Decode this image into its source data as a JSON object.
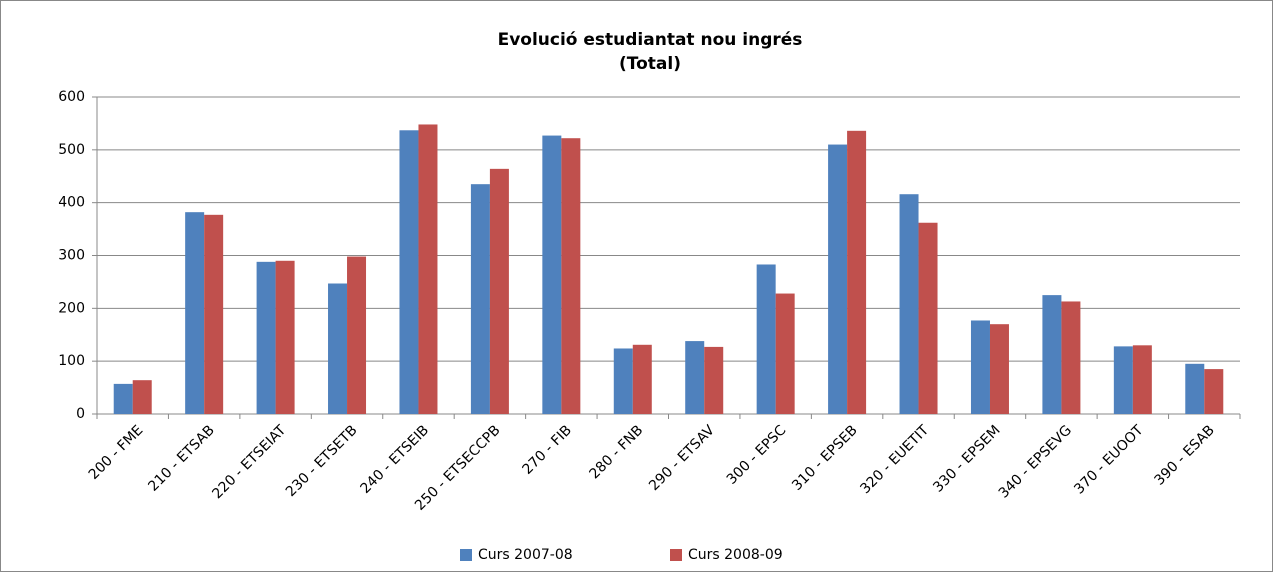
{
  "chart_data": {
    "type": "bar",
    "title": "Evolució estudiantat nou ingrés",
    "subtitle": "(Total)",
    "categories": [
      "200 - FME",
      "210 - ETSAB",
      "220 - ETSEIAT",
      "230 - ETSETB",
      "240 - ETSEIB",
      "250 - ETSECCPB",
      "270 - FIB",
      "280 - FNB",
      "290 - ETSAV",
      "300 - EPSC",
      "310 - EPSEB",
      "320 - EUETIT",
      "330 - EPSEM",
      "340 - EPSEVG",
      "370 - EUOOT",
      "390 - ESAB"
    ],
    "series": [
      {
        "name": "Curs 2007-08",
        "color": "#4f81bd",
        "values": [
          57,
          382,
          288,
          247,
          537,
          435,
          527,
          124,
          138,
          283,
          510,
          416,
          177,
          225,
          128,
          95
        ]
      },
      {
        "name": "Curs 2008-09",
        "color": "#c0504d",
        "values": [
          64,
          377,
          290,
          298,
          548,
          464,
          522,
          131,
          127,
          228,
          536,
          362,
          170,
          213,
          130,
          85
        ]
      }
    ],
    "ylim": [
      0,
      600
    ],
    "yticks": [
      0,
      100,
      200,
      300,
      400,
      500,
      600
    ],
    "grid": true,
    "legend": "bottom"
  }
}
